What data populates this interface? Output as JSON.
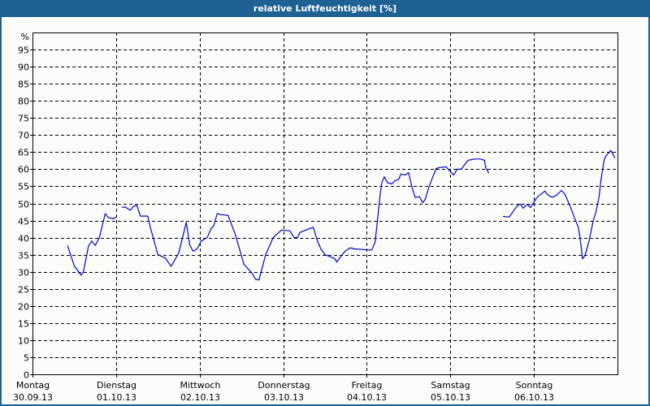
{
  "window": {
    "title": "relative Luftfeuchtigkeit [%]",
    "header_color": "#1e6193",
    "line_color": "#0000cc"
  },
  "chart_data": {
    "type": "line",
    "title": "relative Luftfeuchtigkeit [%]",
    "xlabel": "",
    "ylabel": "%",
    "ylim": [
      0,
      100
    ],
    "y_ticks": [
      0,
      5,
      10,
      15,
      20,
      25,
      30,
      35,
      40,
      45,
      50,
      55,
      60,
      65,
      70,
      75,
      80,
      85,
      90,
      95
    ],
    "grid": true,
    "legend": null,
    "x_categories": [
      {
        "day": "Montag",
        "date": "30.09.13"
      },
      {
        "day": "Dienstag",
        "date": "01.10.13"
      },
      {
        "day": "Mittwoch",
        "date": "02.10.13"
      },
      {
        "day": "Donnerstag",
        "date": "03.10.13"
      },
      {
        "day": "Freitag",
        "date": "04.10.13"
      },
      {
        "day": "Samstag",
        "date": "05.10.13"
      },
      {
        "day": "Sonntag",
        "date": "06.10.13"
      }
    ],
    "x_unit": "days since Montag 30.09.13 00:00",
    "x_range": [
      0,
      7
    ],
    "series": [
      {
        "name": "relative Luftfeuchtigkeit",
        "segments": [
          [
            [
              0.42,
              37.7
            ],
            [
              0.5,
              31.7
            ],
            [
              0.58,
              29.0
            ],
            [
              0.61,
              30.0
            ],
            [
              0.67,
              37.5
            ],
            [
              0.71,
              39.0
            ],
            [
              0.75,
              37.7
            ],
            [
              0.8,
              40.0
            ],
            [
              0.87,
              47.0
            ],
            [
              0.91,
              45.8
            ],
            [
              0.97,
              45.5
            ],
            [
              1.0,
              46.0
            ]
          ],
          [
            [
              1.07,
              48.9
            ],
            [
              1.11,
              48.9
            ],
            [
              1.17,
              48.0
            ],
            [
              1.21,
              49.2
            ],
            [
              1.25,
              49.4
            ],
            [
              1.29,
              46.3
            ],
            [
              1.38,
              46.3
            ],
            [
              1.41,
              43.0
            ],
            [
              1.5,
              35.0
            ],
            [
              1.59,
              34.0
            ],
            [
              1.66,
              31.6
            ],
            [
              1.75,
              35.5
            ],
            [
              1.84,
              44.5
            ],
            [
              1.88,
              38.0
            ],
            [
              1.92,
              36.0
            ],
            [
              1.97,
              36.7
            ],
            [
              2.02,
              39.0
            ],
            [
              2.09,
              40.0
            ],
            [
              2.14,
              42.8
            ],
            [
              2.17,
              43.5
            ],
            [
              2.21,
              47.0
            ],
            [
              2.26,
              46.7
            ],
            [
              2.34,
              46.5
            ],
            [
              2.43,
              40.7
            ],
            [
              2.53,
              32.2
            ],
            [
              2.63,
              29.5
            ],
            [
              2.67,
              27.8
            ],
            [
              2.71,
              27.6
            ],
            [
              2.79,
              35.0
            ],
            [
              2.88,
              40.0
            ],
            [
              2.98,
              42.2
            ],
            [
              3.08,
              42.0
            ],
            [
              3.13,
              40.0
            ],
            [
              3.17,
              40.0
            ],
            [
              3.2,
              41.5
            ],
            [
              3.25,
              42.0
            ],
            [
              3.31,
              42.6
            ],
            [
              3.36,
              43.0
            ],
            [
              3.41,
              39.0
            ],
            [
              3.45,
              36.7
            ],
            [
              3.5,
              35.0
            ],
            [
              3.57,
              34.3
            ],
            [
              3.62,
              33.8
            ],
            [
              3.64,
              32.8
            ],
            [
              3.69,
              34.5
            ],
            [
              3.74,
              36.0
            ],
            [
              3.8,
              37.0
            ],
            [
              3.85,
              36.7
            ],
            [
              3.96,
              36.5
            ],
            [
              4.01,
              36.4
            ],
            [
              4.06,
              36.4
            ],
            [
              4.1,
              38.7
            ],
            [
              4.13,
              45.5
            ],
            [
              4.16,
              52.6
            ],
            [
              4.18,
              56.0
            ],
            [
              4.21,
              57.8
            ],
            [
              4.25,
              56.0
            ],
            [
              4.3,
              55.7
            ],
            [
              4.34,
              56.7
            ],
            [
              4.38,
              57.0
            ],
            [
              4.41,
              58.6
            ],
            [
              4.46,
              58.3
            ],
            [
              4.5,
              59.0
            ],
            [
              4.54,
              54.8
            ],
            [
              4.58,
              51.7
            ],
            [
              4.63,
              52.0
            ],
            [
              4.67,
              50.2
            ],
            [
              4.7,
              51.2
            ],
            [
              4.74,
              54.5
            ],
            [
              4.79,
              57.8
            ],
            [
              4.83,
              60.2
            ],
            [
              4.87,
              60.5
            ],
            [
              4.95,
              60.7
            ],
            [
              5.0,
              59.3
            ],
            [
              5.04,
              58.3
            ],
            [
              5.08,
              60.0
            ],
            [
              5.13,
              60.0
            ],
            [
              5.17,
              61.3
            ],
            [
              5.21,
              62.6
            ],
            [
              5.29,
              63.0
            ],
            [
              5.36,
              63.0
            ],
            [
              5.41,
              62.6
            ],
            [
              5.42,
              60.7
            ],
            [
              5.46,
              58.8
            ]
          ],
          [
            [
              5.63,
              46.2
            ],
            [
              5.7,
              46.0
            ],
            [
              5.72,
              46.5
            ],
            [
              5.77,
              48.3
            ],
            [
              5.81,
              49.5
            ],
            [
              5.84,
              49.8
            ],
            [
              5.87,
              48.6
            ],
            [
              5.92,
              49.7
            ],
            [
              5.96,
              48.8
            ],
            [
              6.02,
              51.2
            ],
            [
              6.05,
              52.1
            ],
            [
              6.09,
              52.8
            ],
            [
              6.13,
              53.6
            ],
            [
              6.17,
              52.4
            ],
            [
              6.22,
              51.8
            ],
            [
              6.27,
              52.4
            ],
            [
              6.33,
              53.8
            ],
            [
              6.37,
              52.7
            ],
            [
              6.43,
              49.4
            ],
            [
              6.49,
              45.5
            ],
            [
              6.53,
              43.1
            ],
            [
              6.55,
              40.3
            ],
            [
              6.57,
              36.3
            ],
            [
              6.58,
              33.8
            ],
            [
              6.61,
              34.7
            ],
            [
              6.66,
              39.0
            ],
            [
              6.71,
              45.0
            ],
            [
              6.74,
              47.3
            ],
            [
              6.78,
              52.0
            ],
            [
              6.8,
              56.4
            ],
            [
              6.84,
              62.6
            ],
            [
              6.86,
              63.8
            ],
            [
              6.92,
              65.5
            ],
            [
              6.97,
              63.3
            ]
          ]
        ]
      }
    ]
  }
}
